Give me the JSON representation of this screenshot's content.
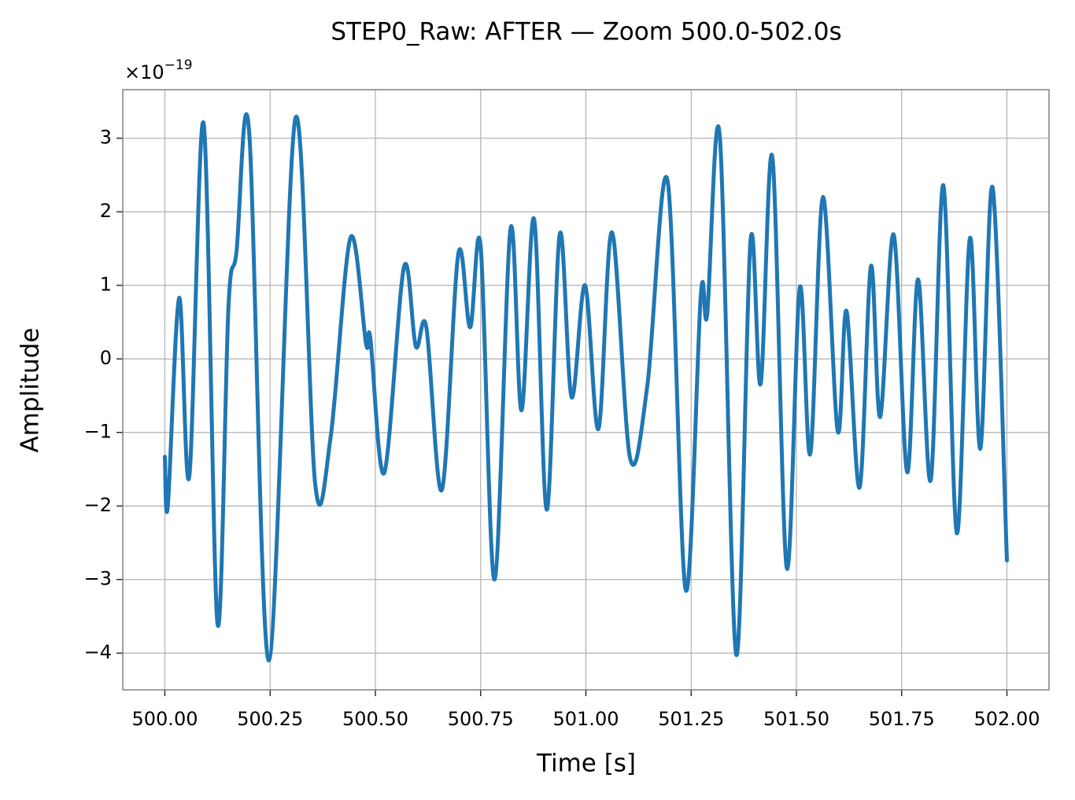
{
  "chart_data": {
    "type": "line",
    "title": "STEP0_Raw: AFTER — Zoom 500.0-502.0s",
    "xlabel": "Time [s]",
    "ylabel": "Amplitude",
    "y_multiplier": "×10",
    "y_multiplier_exponent": "−19",
    "xlim": [
      499.9,
      502.1
    ],
    "ylim": [
      -4.5,
      3.66
    ],
    "xticks": [
      {
        "value": 500,
        "label": "500.00"
      },
      {
        "value": 500.25,
        "label": "500.25"
      },
      {
        "value": 500.5,
        "label": "500.50"
      },
      {
        "value": 500.75,
        "label": "500.75"
      },
      {
        "value": 501,
        "label": "501.00"
      },
      {
        "value": 501.25,
        "label": "501.25"
      },
      {
        "value": 501.5,
        "label": "501.50"
      },
      {
        "value": 501.75,
        "label": "501.75"
      },
      {
        "value": 502,
        "label": "502.00"
      }
    ],
    "yticks": [
      {
        "value": -4,
        "label": "−4"
      },
      {
        "value": -3,
        "label": "−3"
      },
      {
        "value": -2,
        "label": "−2"
      },
      {
        "value": -1,
        "label": "−1"
      },
      0,
      1,
      2,
      3
    ],
    "grid": true,
    "series": [
      {
        "color": "#1f77b4",
        "x": [
          500.0,
          500.007,
          500.034,
          500.058,
          500.092,
          500.125,
          500.151,
          500.17,
          500.2,
          500.247,
          500.31,
          500.357,
          500.394,
          500.441,
          500.478,
          500.488,
          500.521,
          500.568,
          500.596,
          500.621,
          500.658,
          500.697,
          500.725,
          500.75,
          500.783,
          500.821,
          500.847,
          500.877,
          500.907,
          500.938,
          500.966,
          500.998,
          501.03,
          501.062,
          501.105,
          501.146,
          501.194,
          501.237,
          501.273,
          501.288,
          501.318,
          501.357,
          501.391,
          501.415,
          501.443,
          501.477,
          501.508,
          501.533,
          501.563,
          501.598,
          501.619,
          501.65,
          501.677,
          501.699,
          501.731,
          501.763,
          501.789,
          501.819,
          501.849,
          501.881,
          501.912,
          501.937,
          501.966,
          502.0
        ],
        "values": [
          -1.33,
          -2.0,
          0.83,
          -1.6,
          3.2,
          -3.6,
          0.7,
          1.45,
          3.1,
          -4.1,
          3.27,
          -1.7,
          -1.05,
          1.65,
          0.2,
          0.28,
          -1.55,
          1.25,
          0.17,
          0.43,
          -1.78,
          1.43,
          0.43,
          1.53,
          -3.0,
          1.77,
          -0.7,
          1.9,
          -2.05,
          1.7,
          -0.52,
          1.0,
          -0.95,
          1.72,
          -1.35,
          -0.36,
          2.42,
          -3.14,
          0.87,
          0.6,
          3.03,
          -4.02,
          1.61,
          -0.34,
          2.74,
          -2.84,
          0.97,
          -1.29,
          2.2,
          -0.98,
          0.65,
          -1.75,
          1.26,
          -0.79,
          1.69,
          -1.54,
          1.08,
          -1.65,
          2.36,
          -2.37,
          1.64,
          -1.22,
          2.33,
          -2.74
        ]
      }
    ]
  }
}
